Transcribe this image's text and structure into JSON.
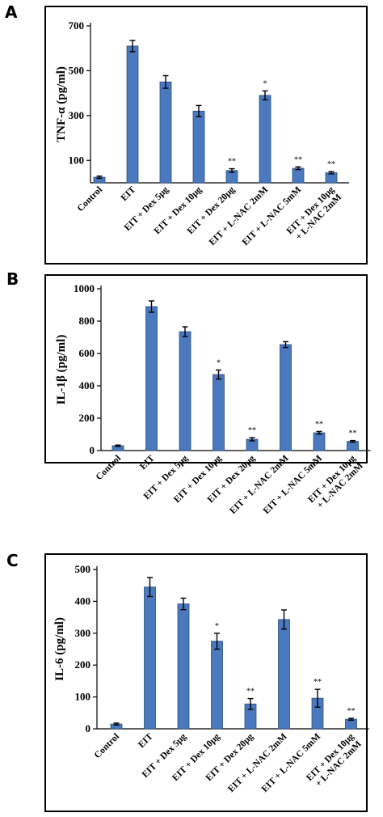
{
  "chart_data": [
    {
      "type": "bar",
      "panel": "A",
      "ylabel": "TNF-α (pg/ml)",
      "ylim": [
        0,
        700
      ],
      "yticks": [
        "700",
        "500",
        "300",
        "100"
      ],
      "ytick_values": [
        700,
        500,
        300,
        100
      ],
      "categories": [
        "Control",
        "EIT",
        "EIT + Dex 5μg",
        "EIT + Dex 10μg",
        "EIT + Dex 20μg",
        "EIT + L-NAC 2mM",
        "EIT + L-NAC 5mM",
        "EIT + Dex 10μg|+ L-NAC 2mM"
      ],
      "values": [
        25,
        610,
        450,
        320,
        55,
        390,
        65,
        45
      ],
      "errors": [
        5,
        25,
        28,
        25,
        8,
        20,
        6,
        5
      ],
      "annotations": [
        "",
        "",
        "",
        "",
        "**",
        "*",
        "**",
        "**"
      ]
    },
    {
      "type": "bar",
      "panel": "B",
      "ylabel": "IL-1β (pg/ml)",
      "ylim": [
        0,
        1000
      ],
      "yticks": [
        "1000",
        "800",
        "600",
        "400",
        "200",
        "0"
      ],
      "ytick_values": [
        1000,
        800,
        600,
        400,
        200,
        0
      ],
      "categories": [
        "Control",
        "EIT",
        "EIT + Dex 5μg",
        "EIT + Dex 10μg",
        "EIT + Dex 20μg",
        "EIT + L-NAC 2mM",
        "EIT + L-NAC 5mM",
        "EIT + Dex 10μg|+ L-NAC 2mM"
      ],
      "values": [
        30,
        890,
        735,
        470,
        70,
        655,
        110,
        57
      ],
      "errors": [
        4,
        35,
        30,
        28,
        10,
        18,
        8,
        5
      ],
      "annotations": [
        "",
        "",
        "",
        "*",
        "**",
        "",
        "**",
        "**"
      ]
    },
    {
      "type": "bar",
      "panel": "C",
      "ylabel": "IL-6 (pg/ml)",
      "ylim": [
        0,
        500
      ],
      "yticks": [
        "500",
        "400",
        "300",
        "200",
        "100",
        "0"
      ],
      "ytick_values": [
        500,
        400,
        300,
        200,
        100,
        0
      ],
      "categories": [
        "Control",
        "EIT",
        "EIT + Dex 5μg",
        "EIT + Dex 10μg",
        "EIT + Dex 20μg",
        "EIT + L-NAC 2mM",
        "EIT + L-NAC 5mM",
        "EIT + Dex 10μg|+ L-NAC 2mM"
      ],
      "values": [
        15,
        445,
        392,
        275,
        78,
        343,
        96,
        30
      ],
      "errors": [
        3,
        30,
        18,
        25,
        17,
        30,
        28,
        3
      ],
      "annotations": [
        "",
        "",
        "",
        "*",
        "**",
        "",
        "**",
        "**"
      ]
    }
  ],
  "colors": {
    "bar": "#4a79bf",
    "bar_edge": "#2c4f80"
  }
}
